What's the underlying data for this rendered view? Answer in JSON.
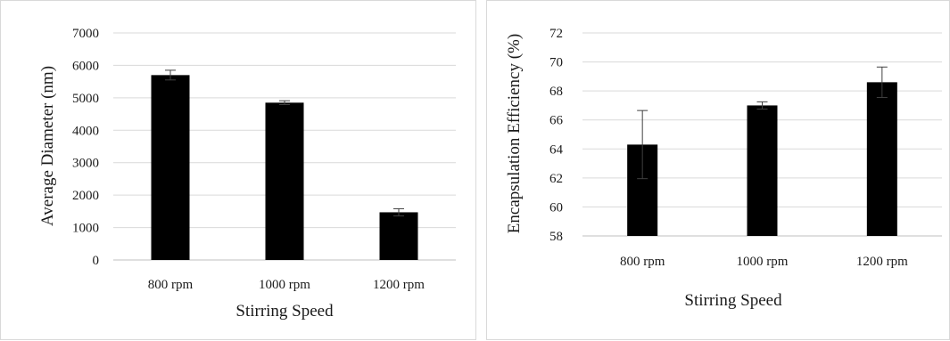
{
  "chart_data": [
    {
      "type": "bar",
      "title": "",
      "xlabel": "Stirring Speed",
      "ylabel": "Average Diameter (nm)",
      "categories": [
        "800 rpm",
        "1000 rpm",
        "1200 rpm"
      ],
      "values": [
        5700,
        4850,
        1470
      ],
      "errors": [
        150,
        60,
        110
      ],
      "ylim": [
        0,
        7000
      ],
      "yticks": [
        "0",
        "1000",
        "2000",
        "3000",
        "4000",
        "5000",
        "6000",
        "7000"
      ],
      "grid": true,
      "legend": "none",
      "bar_color": "#000000"
    },
    {
      "type": "bar",
      "title": "",
      "xlabel": "Stirring Speed",
      "ylabel": "Encapsulation Efficiency (%)",
      "categories": [
        "800 rpm",
        "1000 rpm",
        "1200 rpm"
      ],
      "values": [
        64.3,
        67.0,
        68.6
      ],
      "errors": [
        2.35,
        0.25,
        1.05
      ],
      "ylim": [
        58,
        72
      ],
      "yticks": [
        "58",
        "60",
        "62",
        "64",
        "66",
        "68",
        "70",
        "72"
      ],
      "grid": true,
      "legend": "none",
      "bar_color": "#000000"
    }
  ]
}
